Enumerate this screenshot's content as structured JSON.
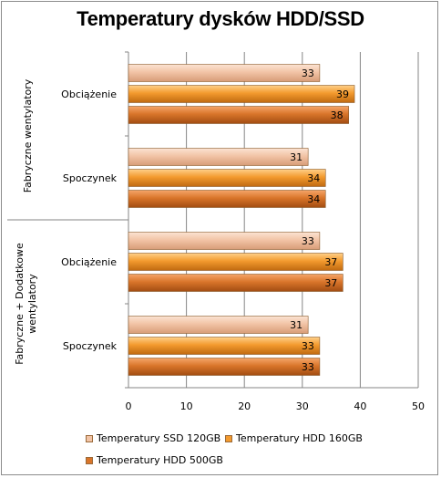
{
  "chart_data": {
    "type": "bar",
    "orientation": "horizontal",
    "title": "Temperatury dysków HDD/SSD",
    "xlabel": "",
    "ylabel": "",
    "xlim": [
      0,
      50
    ],
    "xticks": [
      0,
      10,
      20,
      30,
      40,
      50
    ],
    "grid": true,
    "legend_position": "bottom",
    "groups": [
      {
        "label": "Fabryczne wentylatory",
        "categories": [
          {
            "label": "Obciążenie",
            "values": [
              33,
              39,
              38
            ]
          },
          {
            "label": "Spoczynek",
            "values": [
              31,
              34,
              34
            ]
          }
        ]
      },
      {
        "label": "Fabryczne + Dodatkowe wentylatory",
        "categories": [
          {
            "label": "Obciążenie",
            "values": [
              33,
              37,
              37
            ]
          },
          {
            "label": "Spoczynek",
            "values": [
              31,
              33,
              33
            ]
          }
        ]
      }
    ],
    "series": [
      {
        "name": "Temperatury SSD 120GB",
        "color": "#f2c4a6"
      },
      {
        "name": "Temperatury HDD 160GB",
        "color": "#f39a2e"
      },
      {
        "name": "Temperatury HDD 500GB",
        "color": "#d9752a"
      }
    ]
  },
  "legend": {
    "s0": "Temperatury SSD 120GB",
    "s1": "Temperatury HDD 160GB",
    "s2": "Temperatury HDD 500GB"
  }
}
